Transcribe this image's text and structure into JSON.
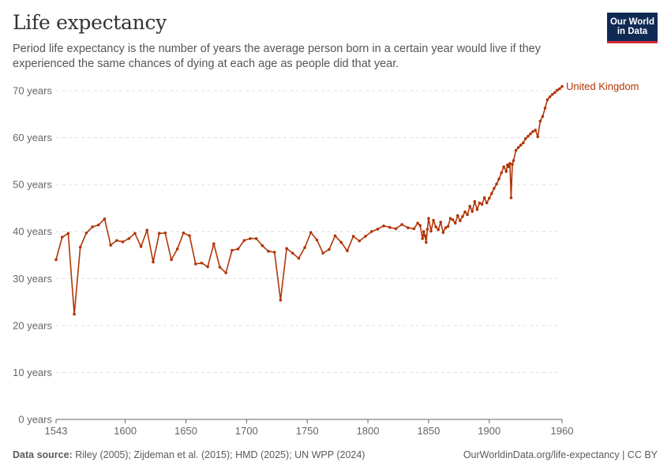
{
  "header": {
    "title": "Life expectancy",
    "subtitle": "Period life expectancy is the number of years the average person born in a certain year would live if they experienced the same chances of dying at each age as people did that year."
  },
  "logo": {
    "line1": "Our World",
    "line2": "in Data"
  },
  "footer": {
    "source_label": "Data source:",
    "source_text": " Riley (2005); Zijdeman et al. (2015); HMD (2025); UN WPP (2024)",
    "link": "OurWorldinData.org/life-expectancy | CC BY"
  },
  "chart_data": {
    "type": "line",
    "xlim": [
      1543,
      1960
    ],
    "ylim": [
      0,
      70
    ],
    "x_ticks": [
      1543,
      1600,
      1650,
      1700,
      1750,
      1800,
      1850,
      1900,
      1960
    ],
    "y_ticks": [
      0,
      10,
      20,
      30,
      40,
      50,
      60,
      70
    ],
    "y_tick_labels": [
      "0 years",
      "10 years",
      "20 years",
      "30 years",
      "40 years",
      "50 years",
      "60 years",
      "70 years"
    ],
    "grid": "horizontal dashed",
    "colors": {
      "series": "#b13507",
      "grid": "#dddddd",
      "axis": "#666666",
      "text": "#666666"
    },
    "series": [
      {
        "name": "United Kingdom",
        "x": [
          1543,
          1548,
          1553,
          1558,
          1563,
          1568,
          1573,
          1578,
          1583,
          1588,
          1593,
          1598,
          1603,
          1608,
          1613,
          1618,
          1623,
          1628,
          1633,
          1638,
          1643,
          1648,
          1653,
          1658,
          1663,
          1668,
          1673,
          1678,
          1683,
          1688,
          1693,
          1698,
          1703,
          1708,
          1713,
          1718,
          1723,
          1728,
          1733,
          1738,
          1743,
          1748,
          1753,
          1758,
          1763,
          1768,
          1773,
          1778,
          1783,
          1788,
          1793,
          1798,
          1803,
          1808,
          1813,
          1818,
          1823,
          1828,
          1833,
          1838,
          1841,
          1843,
          1845,
          1846,
          1847,
          1848,
          1849,
          1850,
          1852,
          1854,
          1856,
          1858,
          1860,
          1862,
          1864,
          1866,
          1868,
          1870,
          1872,
          1874,
          1876,
          1878,
          1880,
          1882,
          1884,
          1886,
          1888,
          1890,
          1892,
          1894,
          1896,
          1898,
          1900,
          1902,
          1904,
          1906,
          1908,
          1910,
          1912,
          1914,
          1915,
          1916,
          1917,
          1918,
          1919,
          1920,
          1922,
          1924,
          1926,
          1928,
          1930,
          1932,
          1934,
          1936,
          1938,
          1940,
          1942,
          1944,
          1946,
          1948,
          1950,
          1952,
          1954,
          1956,
          1958,
          1960
        ],
        "values": [
          34,
          38.8,
          39.6,
          22.4,
          36.7,
          39.7,
          41,
          41.4,
          42.7,
          37.1,
          38.1,
          37.8,
          38.5,
          39.6,
          36.8,
          40.3,
          33.5,
          39.6,
          39.7,
          34,
          36.3,
          39.7,
          39.1,
          33.1,
          33.3,
          32.5,
          37.4,
          32.4,
          31.2,
          36,
          36.3,
          38.1,
          38.5,
          38.5,
          37,
          35.8,
          35.6,
          25.4,
          36.4,
          35.4,
          34.3,
          36.6,
          39.8,
          38.2,
          35.4,
          36.2,
          39.1,
          37.7,
          35.9,
          39,
          38,
          39,
          40,
          40.5,
          41.2,
          40.9,
          40.6,
          41.5,
          40.8,
          40.6,
          41.8,
          41.3,
          38.5,
          40,
          39.1,
          37.7,
          40.5,
          42.8,
          40.1,
          42.4,
          41,
          40.4,
          42,
          39.8,
          40.8,
          41.1,
          42.8,
          42.5,
          41.8,
          43.4,
          42.3,
          43.2,
          44.2,
          43.6,
          45.4,
          44.3,
          46.4,
          44.7,
          46.1,
          45.8,
          47.2,
          46.1,
          47.1,
          48.1,
          49.2,
          50.1,
          51.2,
          52.5,
          53.8,
          52.8,
          54.2,
          53.8,
          54.5,
          47.2,
          54.3,
          55.1,
          57.3,
          57.9,
          58.4,
          58.9,
          59.8,
          60.3,
          60.8,
          61.3,
          61.6,
          60.2,
          63.5,
          64.5,
          66.3,
          68.1,
          68.7,
          69.2,
          69.6,
          70.1,
          70.4,
          70.9
        ]
      }
    ]
  }
}
